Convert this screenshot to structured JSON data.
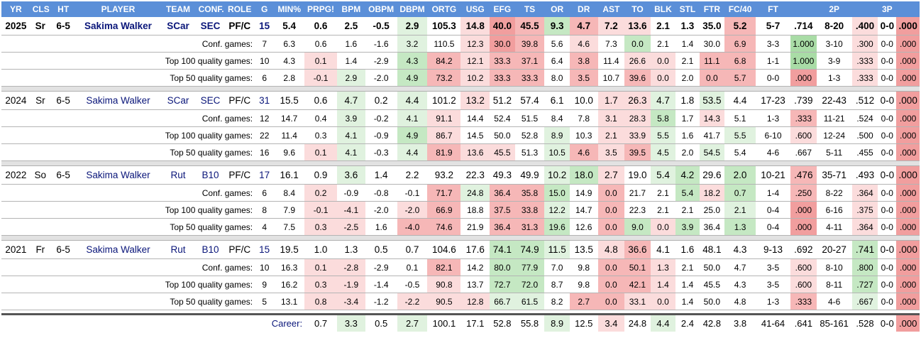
{
  "columns": [
    "YR",
    "CLS",
    "HT",
    "PLAYER",
    "TEAM",
    "CONF.",
    "ROLE",
    "G",
    "MIN%",
    "PRPG!",
    "BPM",
    "OBPM",
    "DBPM",
    "ORTG",
    "USG",
    "EFG",
    "TS",
    "OR",
    "DR",
    "AST",
    "TO",
    "BLK",
    "STL",
    "FTR",
    "FC/40",
    "FT",
    "",
    "2P",
    "",
    "3P",
    ""
  ],
  "seasons": [
    {
      "bold": true,
      "main": [
        "2025",
        "Sr",
        "6-5",
        "Sakima Walker",
        "SCar",
        "SEC",
        "PF/C",
        "15",
        "5.4",
        "0.6",
        "2.5",
        "-0.5",
        "2.9",
        "105.3",
        "14.8",
        "40.0",
        "45.5",
        "9.3",
        "4.7",
        "7.2",
        "13.6",
        "2.1",
        "1.3",
        "35.0",
        "5.2",
        "5-7",
        ".714",
        "8-20",
        ".400",
        "0-0",
        ".000"
      ],
      "main_shade": [
        "",
        "",
        "",
        "",
        "",
        "",
        "",
        "",
        "",
        "",
        "",
        "",
        "g1",
        "",
        "r1",
        "r3",
        "r2",
        "g2",
        "r2",
        "r1",
        "r1",
        "",
        "",
        "",
        "r2",
        "",
        "",
        "",
        "r1",
        "",
        "r3"
      ],
      "subs": [
        {
          "label": "Conf. games:",
          "values": [
            "7",
            "6.3",
            "0.6",
            "1.6",
            "-1.6",
            "3.2",
            "110.5",
            "12.3",
            "30.0",
            "39.8",
            "5.6",
            "4.6",
            "7.3",
            "0.0",
            "2.1",
            "1.4",
            "30.0",
            "6.9",
            "3-3",
            "1.000",
            "3-10",
            ".300",
            "0-0",
            ".000"
          ],
          "shade": [
            "",
            "",
            "",
            "",
            "",
            "g1",
            "",
            "r1",
            "r3",
            "r2",
            "",
            "r1",
            "",
            "g2",
            "",
            "",
            "",
            "r2",
            "",
            "g3",
            "",
            "r1",
            "",
            "r3"
          ]
        },
        {
          "label": "Top 100 quality games:",
          "values": [
            "10",
            "4.3",
            "0.1",
            "1.4",
            "-2.9",
            "4.3",
            "84.2",
            "12.1",
            "33.3",
            "37.1",
            "6.4",
            "3.8",
            "11.4",
            "26.6",
            "0.0",
            "2.1",
            "11.1",
            "6.8",
            "1-1",
            "1.000",
            "3-9",
            ".333",
            "0-0",
            ".000"
          ],
          "shade": [
            "",
            "",
            "r1",
            "",
            "",
            "g2",
            "r2",
            "r1",
            "r2",
            "r2",
            "",
            "r2",
            "",
            "r1",
            "r1",
            "",
            "r2",
            "r2",
            "",
            "g3",
            "",
            "r1",
            "",
            "r3"
          ]
        },
        {
          "label": "Top 50 quality games:",
          "values": [
            "6",
            "2.8",
            "-0.1",
            "2.9",
            "-2.0",
            "4.9",
            "73.2",
            "10.2",
            "33.3",
            "33.3",
            "8.0",
            "3.5",
            "10.7",
            "39.6",
            "0.0",
            "2.0",
            "0.0",
            "5.7",
            "0-0",
            ".000",
            "1-3",
            ".333",
            "0-0",
            ".000"
          ],
          "shade": [
            "",
            "",
            "r1",
            "g1",
            "",
            "g2",
            "r2",
            "r1",
            "r2",
            "r2",
            "",
            "r2",
            "",
            "r2",
            "r1",
            "",
            "r2",
            "r2",
            "",
            "r3",
            "",
            "r1",
            "",
            "r3"
          ]
        }
      ]
    },
    {
      "bold": false,
      "main": [
        "2024",
        "Sr",
        "6-5",
        "Sakima Walker",
        "SCar",
        "SEC",
        "PF/C",
        "31",
        "15.5",
        "0.6",
        "4.7",
        "0.2",
        "4.4",
        "101.2",
        "13.2",
        "51.2",
        "57.4",
        "6.1",
        "10.0",
        "1.7",
        "26.3",
        "4.7",
        "1.8",
        "53.5",
        "4.4",
        "17-23",
        ".739",
        "22-43",
        ".512",
        "0-0",
        ".000"
      ],
      "main_shade": [
        "",
        "",
        "",
        "",
        "",
        "",
        "",
        "",
        "",
        "",
        "g1",
        "",
        "g1",
        "",
        "r1",
        "",
        "",
        "",
        "",
        "r1",
        "r1",
        "g1",
        "",
        "g1",
        "",
        "",
        "",
        "",
        "",
        "",
        "r3"
      ],
      "subs": [
        {
          "label": "Conf. games:",
          "values": [
            "12",
            "14.7",
            "0.4",
            "3.9",
            "-0.2",
            "4.1",
            "91.1",
            "14.4",
            "52.4",
            "51.5",
            "8.4",
            "7.8",
            "3.1",
            "28.3",
            "5.8",
            "1.7",
            "14.3",
            "5.1",
            "1-3",
            ".333",
            "11-21",
            ".524",
            "0-0",
            ".000"
          ],
          "shade": [
            "",
            "",
            "",
            "g1",
            "",
            "g1",
            "r1",
            "",
            "",
            "",
            "",
            "",
            "r1",
            "r1",
            "g2",
            "",
            "r1",
            "",
            "",
            "r2",
            "",
            "",
            "",
            "r3"
          ]
        },
        {
          "label": "Top 100 quality games:",
          "values": [
            "22",
            "11.4",
            "0.3",
            "4.1",
            "-0.9",
            "4.9",
            "86.7",
            "14.5",
            "50.0",
            "52.8",
            "8.9",
            "10.3",
            "2.1",
            "33.9",
            "5.5",
            "1.6",
            "41.7",
            "5.5",
            "6-10",
            ".600",
            "12-24",
            ".500",
            "0-0",
            ".000"
          ],
          "shade": [
            "",
            "",
            "",
            "g1",
            "",
            "g2",
            "r1",
            "",
            "",
            "",
            "g1",
            "",
            "r1",
            "r1",
            "g1",
            "",
            "",
            "g1",
            "",
            "r1",
            "",
            "",
            "",
            "r3"
          ]
        },
        {
          "label": "Top 50 quality games:",
          "values": [
            "16",
            "9.6",
            "0.1",
            "4.1",
            "-0.3",
            "4.4",
            "81.9",
            "13.6",
            "45.5",
            "51.3",
            "10.5",
            "4.6",
            "3.5",
            "39.5",
            "4.5",
            "2.0",
            "54.5",
            "5.4",
            "4-6",
            ".667",
            "5-11",
            ".455",
            "0-0",
            ".000"
          ],
          "shade": [
            "",
            "",
            "r1",
            "g1",
            "",
            "g1",
            "r2",
            "r1",
            "r1",
            "",
            "g1",
            "r2",
            "r1",
            "r2",
            "g1",
            "",
            "g1",
            "",
            "",
            "",
            "",
            "",
            "",
            "r3"
          ]
        }
      ]
    },
    {
      "bold": false,
      "main": [
        "2022",
        "So",
        "6-5",
        "Sakima Walker",
        "Rut",
        "B10",
        "PF/C",
        "17",
        "16.1",
        "0.9",
        "3.6",
        "1.4",
        "2.2",
        "93.2",
        "22.3",
        "49.3",
        "49.9",
        "10.2",
        "18.0",
        "2.7",
        "19.0",
        "5.4",
        "4.2",
        "29.6",
        "2.0",
        "10-21",
        ".476",
        "35-71",
        ".493",
        "0-0",
        ".000"
      ],
      "main_shade": [
        "",
        "",
        "",
        "",
        "",
        "",
        "",
        "",
        "",
        "",
        "g1",
        "",
        "",
        "",
        "",
        "",
        "",
        "g1",
        "g2",
        "r1",
        "",
        "g1",
        "g2",
        "",
        "g2",
        "",
        "r2",
        "",
        "",
        "",
        "r3"
      ],
      "subs": [
        {
          "label": "Conf. games:",
          "values": [
            "6",
            "8.4",
            "0.2",
            "-0.9",
            "-0.8",
            "-0.1",
            "71.7",
            "24.8",
            "36.4",
            "35.8",
            "15.0",
            "14.9",
            "0.0",
            "21.7",
            "2.1",
            "5.4",
            "18.2",
            "0.7",
            "1-4",
            ".250",
            "8-22",
            ".364",
            "0-0",
            ".000"
          ],
          "shade": [
            "",
            "",
            "r1",
            "",
            "",
            "",
            "r2",
            "g1",
            "r2",
            "r2",
            "g2",
            "",
            "r2",
            "",
            "",
            "g2",
            "r1",
            "g2",
            "",
            "r2",
            "",
            "r1",
            "",
            "r3"
          ]
        },
        {
          "label": "Top 100 quality games:",
          "values": [
            "8",
            "7.9",
            "-0.1",
            "-4.1",
            "-2.0",
            "-2.0",
            "66.9",
            "18.8",
            "37.5",
            "33.8",
            "12.2",
            "14.7",
            "0.0",
            "22.3",
            "2.1",
            "2.1",
            "25.0",
            "2.1",
            "0-4",
            ".000",
            "6-16",
            ".375",
            "0-0",
            ".000"
          ],
          "shade": [
            "",
            "",
            "r1",
            "r1",
            "",
            "r1",
            "r2",
            "",
            "r2",
            "r2",
            "g1",
            "",
            "r2",
            "",
            "",
            "",
            "",
            "g1",
            "",
            "r3",
            "",
            "r1",
            "",
            "r3"
          ]
        },
        {
          "label": "Top 50 quality games:",
          "values": [
            "4",
            "7.5",
            "0.3",
            "-2.5",
            "1.6",
            "-4.0",
            "74.6",
            "21.9",
            "36.4",
            "31.3",
            "19.6",
            "12.6",
            "0.0",
            "9.0",
            "0.0",
            "3.9",
            "36.4",
            "1.3",
            "0-4",
            ".000",
            "4-11",
            ".364",
            "0-0",
            ".000"
          ],
          "shade": [
            "",
            "",
            "r1",
            "r1",
            "",
            "r2",
            "r2",
            "",
            "r2",
            "r2",
            "g2",
            "",
            "r2",
            "g2",
            "r1",
            "g2",
            "",
            "g2",
            "",
            "r3",
            "",
            "r1",
            "",
            "r3"
          ]
        }
      ]
    },
    {
      "bold": false,
      "main": [
        "2021",
        "Fr",
        "6-5",
        "Sakima Walker",
        "Rut",
        "B10",
        "PF/C",
        "15",
        "19.5",
        "1.0",
        "1.3",
        "0.5",
        "0.7",
        "104.6",
        "17.6",
        "74.1",
        "74.9",
        "11.5",
        "13.5",
        "4.8",
        "36.6",
        "4.1",
        "1.6",
        "48.1",
        "4.3",
        "9-13",
        ".692",
        "20-27",
        ".741",
        "0-0",
        ".000"
      ],
      "main_shade": [
        "",
        "",
        "",
        "",
        "",
        "",
        "",
        "",
        "",
        "",
        "",
        "",
        "",
        "",
        "",
        "g2",
        "g2",
        "g1",
        "",
        "r1",
        "r2",
        "",
        "",
        "",
        "",
        "",
        "",
        "",
        "g2",
        "",
        "r3"
      ],
      "subs": [
        {
          "label": "Conf. games:",
          "values": [
            "10",
            "16.3",
            "0.1",
            "-2.8",
            "-2.9",
            "0.1",
            "82.1",
            "14.2",
            "80.0",
            "77.9",
            "7.0",
            "9.8",
            "0.0",
            "50.1",
            "1.3",
            "2.1",
            "50.0",
            "4.7",
            "3-5",
            ".600",
            "8-10",
            ".800",
            "0-0",
            ".000"
          ],
          "shade": [
            "",
            "",
            "r1",
            "r1",
            "",
            "",
            "r2",
            "",
            "g2",
            "g2",
            "",
            "",
            "r2",
            "r2",
            "r1",
            "",
            "",
            "",
            "",
            "r1",
            "",
            "g2",
            "",
            "r3"
          ]
        },
        {
          "label": "Top 100 quality games:",
          "values": [
            "9",
            "16.2",
            "0.3",
            "-1.9",
            "-1.4",
            "-0.5",
            "90.8",
            "13.7",
            "72.7",
            "72.0",
            "8.7",
            "9.8",
            "0.0",
            "42.1",
            "1.4",
            "1.4",
            "45.5",
            "4.3",
            "3-5",
            ".600",
            "8-11",
            ".727",
            "0-0",
            ".000"
          ],
          "shade": [
            "",
            "",
            "r1",
            "r1",
            "",
            "",
            "r1",
            "",
            "g2",
            "g2",
            "",
            "",
            "r2",
            "r2",
            "r1",
            "",
            "",
            "",
            "",
            "r1",
            "",
            "g2",
            "",
            "r3"
          ]
        },
        {
          "label": "Top 50 quality games:",
          "values": [
            "5",
            "13.1",
            "0.8",
            "-3.4",
            "-1.2",
            "-2.2",
            "90.5",
            "12.8",
            "66.7",
            "61.5",
            "8.2",
            "2.7",
            "0.0",
            "33.1",
            "0.0",
            "1.4",
            "50.0",
            "4.8",
            "1-3",
            ".333",
            "4-6",
            ".667",
            "0-0",
            ".000"
          ],
          "shade": [
            "",
            "",
            "r1",
            "r1",
            "",
            "r1",
            "r1",
            "r1",
            "g1",
            "g1",
            "",
            "r2",
            "r2",
            "r1",
            "r1",
            "",
            "",
            "",
            "",
            "r2",
            "",
            "g1",
            "",
            "r3"
          ]
        }
      ]
    }
  ],
  "career": {
    "label": "Career:",
    "values": [
      "0.7",
      "3.3",
      "0.5",
      "2.7",
      "100.1",
      "17.1",
      "52.8",
      "55.8",
      "8.9",
      "12.5",
      "3.4",
      "24.8",
      "4.4",
      "2.4",
      "42.8",
      "3.8",
      "41-64",
      ".641",
      "85-161",
      ".528",
      "0-0",
      ".000"
    ],
    "shade": [
      "",
      "g1",
      "",
      "g1",
      "",
      "",
      "",
      "",
      "g1",
      "",
      "r1",
      "",
      "g1",
      "",
      "",
      "",
      "",
      "",
      "",
      "",
      "",
      "r3"
    ]
  }
}
